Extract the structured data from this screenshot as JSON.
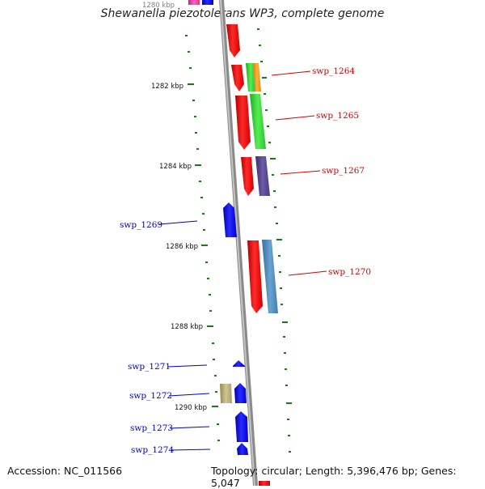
{
  "title": "Shewanella piezotolerans WP3, complete genome",
  "footer": {
    "accession": "Accession: NC_011566",
    "summary": "Topology: circular; Length: 5,396,476 bp; Genes: 5,047"
  },
  "ruler": [
    {
      "label": "1282 kbp"
    },
    {
      "label": "1284 kbp"
    },
    {
      "label": "1286 kbp"
    },
    {
      "label": "1288 kbp"
    },
    {
      "label": "1290 kbp"
    }
  ],
  "partial_top_label": "1280 kbp",
  "genes": [
    {
      "name": "swp_1264",
      "strand": "forward"
    },
    {
      "name": "swp_1265",
      "strand": "forward"
    },
    {
      "name": "swp_1267",
      "strand": "forward"
    },
    {
      "name": "swp_1269",
      "strand": "reverse"
    },
    {
      "name": "swp_1270",
      "strand": "forward"
    },
    {
      "name": "swp_1271",
      "strand": "reverse"
    },
    {
      "name": "swp_1272",
      "strand": "reverse"
    },
    {
      "name": "swp_1273",
      "strand": "reverse"
    },
    {
      "name": "swp_1274",
      "strand": "reverse"
    }
  ],
  "colors": {
    "forward_label": "#d40000",
    "reverse_label": "#0000cc",
    "forward_gene": "#ff0000",
    "reverse_gene": "#0000ff",
    "backbone": "#999999",
    "ruler_tick": "#1a7a1a",
    "green_feature": "#33cc33",
    "orange_feature": "#ff9900",
    "purple_feature": "#55448f",
    "steelblue_feature": "#4a86b5",
    "olive_feature": "#b8b070",
    "pink_feature": "#ff44aa"
  }
}
